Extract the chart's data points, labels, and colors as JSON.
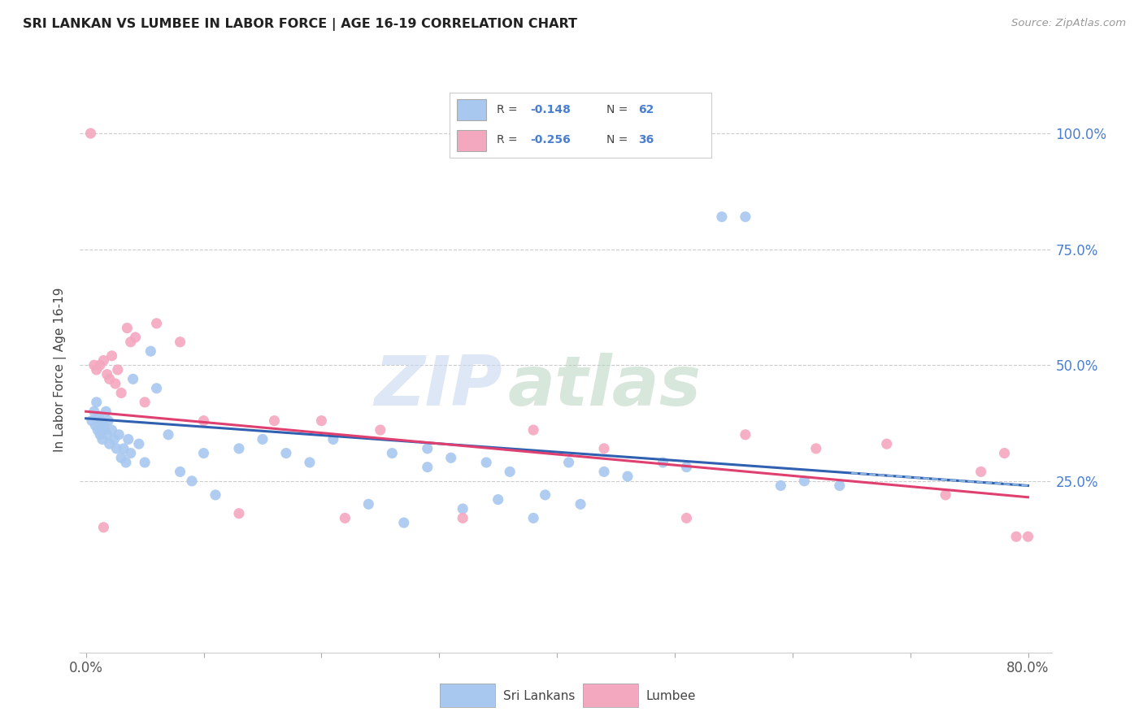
{
  "title": "SRI LANKAN VS LUMBEE IN LABOR FORCE | AGE 16-19 CORRELATION CHART",
  "source": "Source: ZipAtlas.com",
  "ylabel": "In Labor Force | Age 16-19",
  "ytick_labels": [
    "100.0%",
    "75.0%",
    "50.0%",
    "25.0%"
  ],
  "ytick_values": [
    1.0,
    0.75,
    0.5,
    0.25
  ],
  "xlim": [
    0.0,
    0.8
  ],
  "ylim": [
    -0.12,
    1.1
  ],
  "blue_color": "#A8C8F0",
  "pink_color": "#F4A8C0",
  "blue_line_color": "#3060B0",
  "pink_line_color": "#E04070",
  "blue_dash_color": "#90B8E0",
  "watermark_zip_color": "#C8D8F0",
  "watermark_atlas_color": "#B8D4C0",
  "sri_lankan_x": [
    0.005,
    0.007,
    0.008,
    0.009,
    0.01,
    0.011,
    0.012,
    0.013,
    0.014,
    0.015,
    0.016,
    0.017,
    0.018,
    0.019,
    0.02,
    0.022,
    0.024,
    0.026,
    0.028,
    0.03,
    0.032,
    0.034,
    0.036,
    0.038,
    0.04,
    0.045,
    0.05,
    0.055,
    0.06,
    0.07,
    0.08,
    0.09,
    0.1,
    0.11,
    0.13,
    0.15,
    0.17,
    0.19,
    0.21,
    0.24,
    0.26,
    0.29,
    0.31,
    0.34,
    0.36,
    0.39,
    0.41,
    0.44,
    0.46,
    0.49,
    0.51,
    0.54,
    0.56,
    0.59,
    0.61,
    0.64,
    0.29,
    0.32,
    0.35,
    0.38,
    0.42,
    0.27
  ],
  "sri_lankan_y": [
    0.38,
    0.4,
    0.37,
    0.42,
    0.36,
    0.39,
    0.35,
    0.38,
    0.34,
    0.37,
    0.36,
    0.4,
    0.35,
    0.38,
    0.33,
    0.36,
    0.34,
    0.32,
    0.35,
    0.3,
    0.32,
    0.29,
    0.34,
    0.31,
    0.47,
    0.33,
    0.29,
    0.53,
    0.45,
    0.35,
    0.27,
    0.25,
    0.31,
    0.22,
    0.32,
    0.34,
    0.31,
    0.29,
    0.34,
    0.2,
    0.31,
    0.28,
    0.3,
    0.29,
    0.27,
    0.22,
    0.29,
    0.27,
    0.26,
    0.29,
    0.28,
    0.82,
    0.82,
    0.24,
    0.25,
    0.24,
    0.32,
    0.19,
    0.21,
    0.17,
    0.2,
    0.16
  ],
  "lumbee_x": [
    0.004,
    0.007,
    0.009,
    0.012,
    0.015,
    0.018,
    0.02,
    0.022,
    0.025,
    0.027,
    0.03,
    0.035,
    0.038,
    0.042,
    0.05,
    0.06,
    0.08,
    0.1,
    0.13,
    0.16,
    0.2,
    0.22,
    0.25,
    0.32,
    0.38,
    0.44,
    0.51,
    0.56,
    0.62,
    0.68,
    0.73,
    0.76,
    0.78,
    0.79,
    0.8,
    0.015
  ],
  "lumbee_y": [
    1.0,
    0.5,
    0.49,
    0.5,
    0.51,
    0.48,
    0.47,
    0.52,
    0.46,
    0.49,
    0.44,
    0.58,
    0.55,
    0.56,
    0.42,
    0.59,
    0.55,
    0.38,
    0.18,
    0.38,
    0.38,
    0.17,
    0.36,
    0.17,
    0.36,
    0.32,
    0.17,
    0.35,
    0.32,
    0.33,
    0.22,
    0.27,
    0.31,
    0.13,
    0.13,
    0.15
  ],
  "blue_trend_y_start": 0.385,
  "blue_trend_y_end": 0.24,
  "pink_trend_y_start": 0.4,
  "pink_trend_y_end": 0.215
}
